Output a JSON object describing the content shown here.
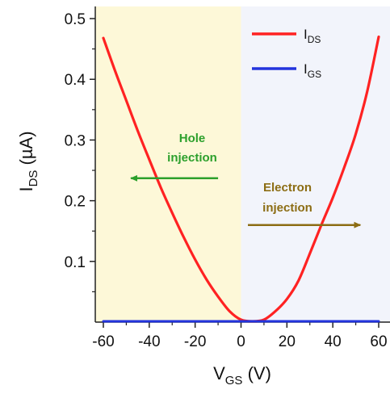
{
  "chart_data": {
    "type": "line",
    "x_axis": {
      "label_main": "V",
      "label_sub": "GS",
      "label_unit": " (V)",
      "range": [
        -60,
        60
      ],
      "ticks": [
        -60,
        -40,
        -20,
        0,
        20,
        40,
        60
      ],
      "tick_labels": [
        "-60",
        "-40",
        "-20",
        "0",
        "20",
        "40",
        "60"
      ]
    },
    "y_axis": {
      "label_main": "I",
      "label_sub": "DS",
      "label_unit": " (µA)",
      "range": [
        0,
        0.52
      ],
      "ticks": [
        0.1,
        0.2,
        0.3,
        0.4,
        0.5
      ],
      "tick_labels": [
        "0.1",
        "0.2",
        "0.3",
        "0.4",
        "0.5"
      ]
    },
    "grid": false,
    "legend_position": "top-right",
    "regions": [
      {
        "x_range": [
          -60,
          0
        ],
        "color": "#fdf8d8"
      },
      {
        "x_range": [
          0,
          60
        ],
        "color": "#f2f4fb"
      }
    ],
    "series": [
      {
        "name_main": "I",
        "name_sub": "DS",
        "color": "#ff2222",
        "x": [
          -60,
          -55,
          -50,
          -45,
          -40,
          -35,
          -30,
          -25,
          -20,
          -15,
          -10,
          -5,
          0,
          5,
          10,
          15,
          20,
          25,
          30,
          35,
          40,
          45,
          50,
          55,
          60
        ],
        "y": [
          0.468,
          0.415,
          0.365,
          0.315,
          0.268,
          0.222,
          0.18,
          0.14,
          0.103,
          0.07,
          0.042,
          0.018,
          0.004,
          0.001,
          0.004,
          0.018,
          0.038,
          0.068,
          0.113,
          0.16,
          0.205,
          0.255,
          0.31,
          0.38,
          0.47
        ]
      },
      {
        "name_main": "I",
        "name_sub": "GS",
        "color": "#2233dd",
        "x": [
          -60,
          60
        ],
        "y": [
          0.0,
          0.0
        ]
      }
    ],
    "annotations": [
      {
        "lines": [
          "Hole",
          "injection"
        ],
        "color": "#2ca02c",
        "arrow_from": -10,
        "arrow_to": -48,
        "arrow_y": 0.237
      },
      {
        "lines": [
          "Electron",
          "injection"
        ],
        "color": "#8c6d14",
        "arrow_from": 3,
        "arrow_to": 52,
        "arrow_y": 0.16
      }
    ]
  }
}
